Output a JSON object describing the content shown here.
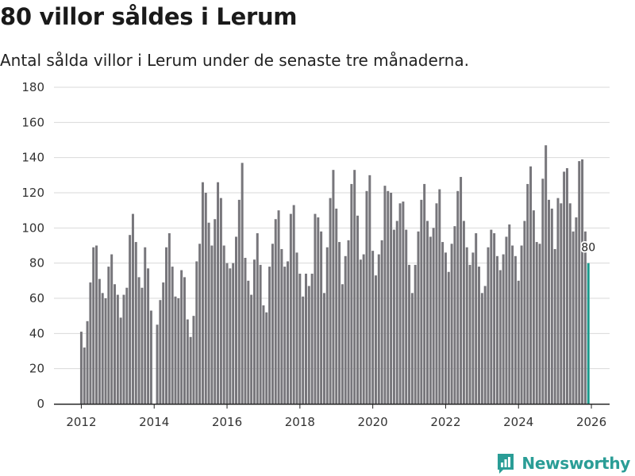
{
  "header": {
    "title": "80 villor såldes i Lerum",
    "subtitle": "Antal sålda villor i Lerum under de senaste tre månaderna."
  },
  "brand": {
    "name": "Newsworthy",
    "logo_icon": "bar-chart-logo-icon",
    "color": "#2a9d96"
  },
  "colors": {
    "bar": "#77767b",
    "highlight": "#1a9a8c",
    "grid": "#d9d9d9",
    "axis": "#222222"
  },
  "chart_data": {
    "type": "bar",
    "title": "80 villor såldes i Lerum",
    "subtitle": "Antal sålda villor i Lerum under de senaste tre månaderna.",
    "xlabel": "",
    "ylabel": "",
    "ylim": [
      0,
      180
    ],
    "yticks": [
      0,
      20,
      40,
      60,
      80,
      100,
      120,
      140,
      160,
      180
    ],
    "xlim": [
      2011.25,
      2026.5
    ],
    "xticks": [
      2012,
      2014,
      2016,
      2018,
      2020,
      2022,
      2024,
      2026
    ],
    "x_start": 2012.0,
    "x_step": 0.0833333,
    "grid": true,
    "values": [
      41,
      32,
      47,
      69,
      89,
      90,
      71,
      63,
      60,
      78,
      85,
      68,
      62,
      49,
      62,
      66,
      96,
      108,
      92,
      72,
      66,
      89,
      77,
      53,
      0,
      45,
      59,
      69,
      89,
      97,
      78,
      61,
      60,
      76,
      72,
      48,
      38,
      50,
      81,
      91,
      126,
      120,
      103,
      90,
      105,
      126,
      117,
      90,
      80,
      77,
      80,
      95,
      116,
      137,
      83,
      70,
      62,
      82,
      97,
      79,
      56,
      52,
      78,
      91,
      105,
      110,
      88,
      78,
      81,
      108,
      113,
      86,
      74,
      61,
      74,
      67,
      74,
      108,
      106,
      98,
      63,
      89,
      117,
      133,
      111,
      92,
      68,
      84,
      93,
      125,
      133,
      107,
      82,
      85,
      121,
      130,
      87,
      73,
      85,
      93,
      124,
      121,
      120,
      99,
      104,
      114,
      115,
      99,
      79,
      63,
      79,
      98,
      116,
      125,
      104,
      95,
      100,
      114,
      122,
      92,
      86,
      75,
      91,
      101,
      121,
      129,
      104,
      89,
      79,
      86,
      97,
      78,
      63,
      67,
      89,
      99,
      97,
      84,
      76,
      85,
      95,
      102,
      90,
      84,
      70,
      90,
      104,
      125,
      135,
      110,
      92,
      91,
      128,
      147,
      116,
      111,
      88,
      117,
      114,
      132,
      134,
      114,
      98,
      106,
      138,
      139,
      98,
      80
    ],
    "last_value_label": "80",
    "highlight_last": true
  }
}
